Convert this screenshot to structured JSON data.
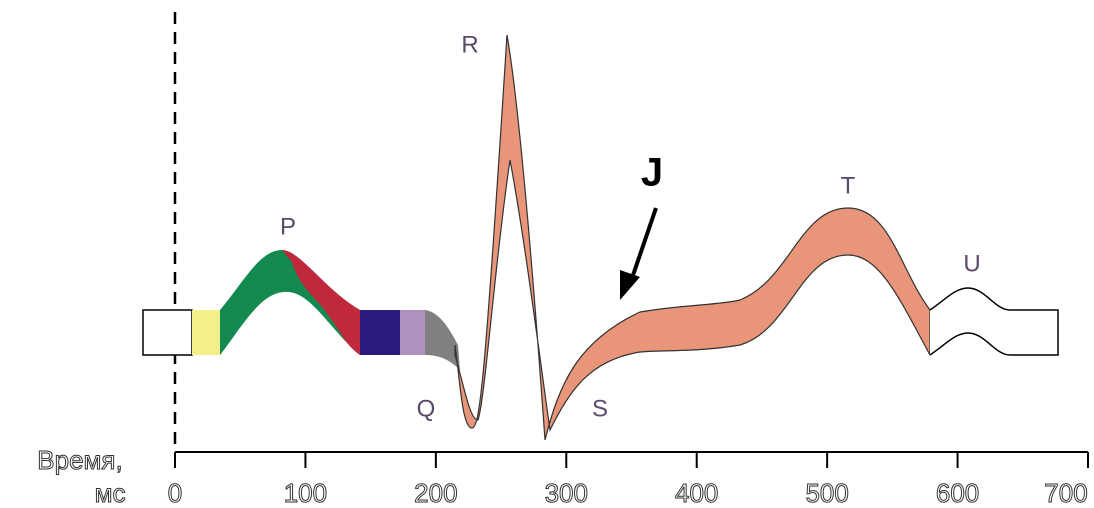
{
  "labels": {
    "P": "P",
    "Q": "Q",
    "R": "R",
    "S": "S",
    "T": "T",
    "U": "U",
    "J": "J"
  },
  "axis": {
    "label_line1": "Время,",
    "label_line2": "мс",
    "ticks": [
      0,
      100,
      200,
      300,
      400,
      500,
      600,
      700
    ]
  }
}
